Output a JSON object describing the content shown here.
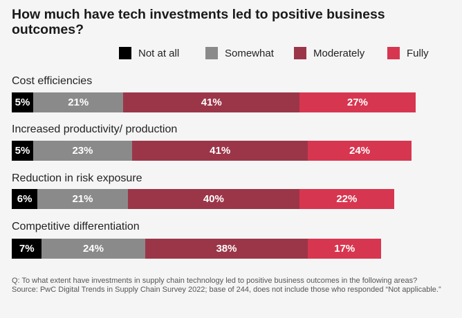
{
  "title": "How much have tech investments led to positive business outcomes?",
  "legend": [
    {
      "label": "Not at all",
      "color": "#000000"
    },
    {
      "label": "Somewhat",
      "color": "#8a8a8a"
    },
    {
      "label": "Moderately",
      "color": "#9b3648"
    },
    {
      "label": "Fully",
      "color": "#d73650"
    }
  ],
  "chart_data": {
    "type": "bar",
    "orientation": "horizontal",
    "stacked": true,
    "categories": [
      "Cost efficiencies",
      "Increased productivity/ production",
      "Reduction in risk exposure",
      "Competitive differentiation"
    ],
    "series": [
      {
        "name": "Not at all",
        "values": [
          5,
          5,
          6,
          7
        ],
        "color": "#000000"
      },
      {
        "name": "Somewhat",
        "values": [
          21,
          23,
          21,
          24
        ],
        "color": "#8a8a8a"
      },
      {
        "name": "Moderately",
        "values": [
          41,
          41,
          40,
          38
        ],
        "color": "#9b3648"
      },
      {
        "name": "Fully",
        "values": [
          27,
          24,
          22,
          17
        ],
        "color": "#d73650"
      }
    ],
    "value_suffix": "%",
    "xlabel": "",
    "ylabel": "",
    "grid": false,
    "legend_position": "top-right"
  },
  "footnote": {
    "question": "Q: To what extent have investments in supply chain technology led to positive business outcomes in the following areas?",
    "source": "Source: PwC Digital Trends in Supply Chain Survey 2022; base of 244, does not include those who responded “Not applicable.”"
  }
}
